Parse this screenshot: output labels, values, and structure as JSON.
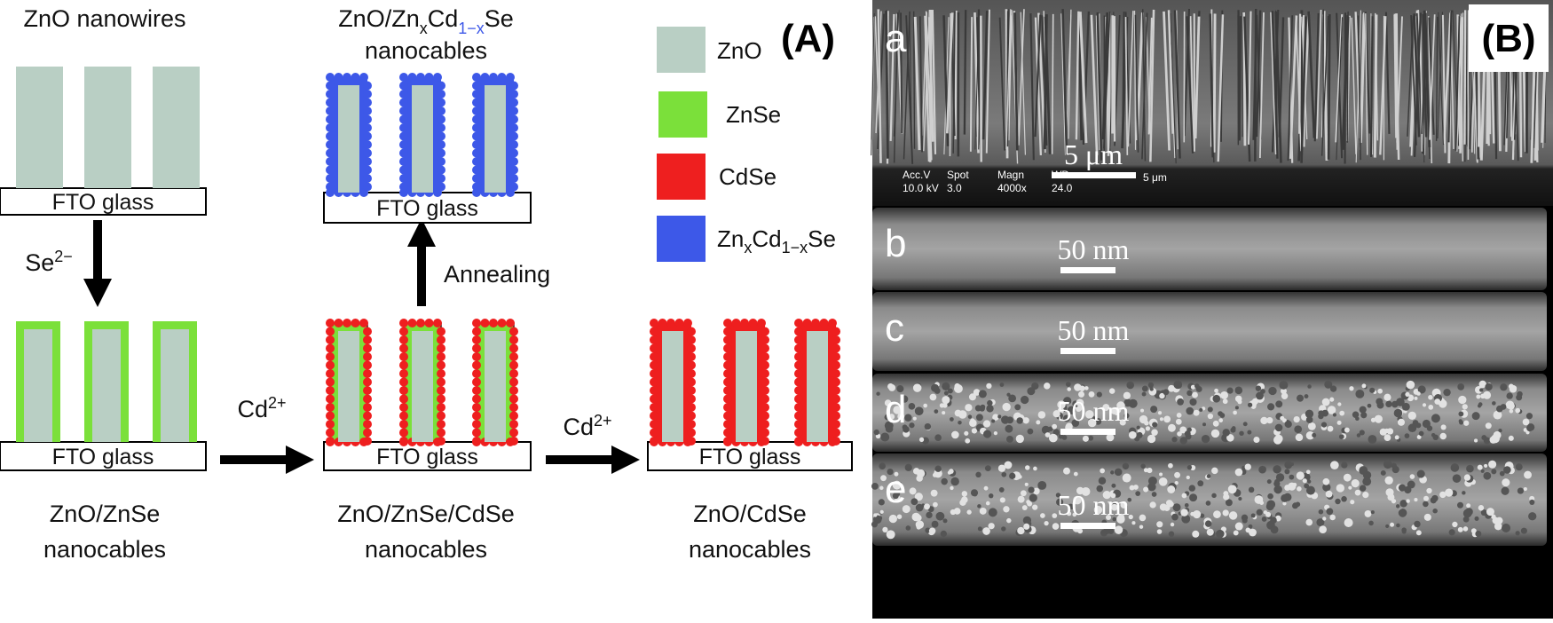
{
  "panel_a": {
    "label": "(A)",
    "substrate_labels": [
      "FTO glass",
      "FTO glass",
      "FTO glass",
      "FTO glass",
      "FTO glass"
    ],
    "captions": {
      "nanowires": "ZnO nanowires",
      "znse": [
        "ZnO/ZnSe",
        "nanocables"
      ],
      "znse_cdse": [
        "ZnO/ZnSe/CdSe",
        "nanocables"
      ],
      "alloy": {
        "prefix": "ZnO/Zn",
        "sub_x": "x",
        "cd": "Cd",
        "sub_1x": "1−x",
        "suffix": "Se",
        "line2": "nanocables"
      },
      "cdse": [
        "ZnO/CdSe",
        "nanocables"
      ]
    },
    "steps": [
      {
        "ion": "Se",
        "charge": "2−"
      },
      {
        "ion": "Cd",
        "charge": "2+"
      },
      {
        "label": "Annealing"
      },
      {
        "ion": "Cd",
        "charge": "2+"
      }
    ],
    "legend": [
      {
        "name": "ZnO",
        "color": "#b9cfc4"
      },
      {
        "name": "ZnSe",
        "color": "#7be03a"
      },
      {
        "name": "CdSe",
        "color": "#ee1f1f"
      },
      {
        "name_parts": [
          "Zn",
          "x",
          "Cd",
          "1−x",
          "Se"
        ],
        "color": "#3d58e8"
      }
    ]
  },
  "panel_b": {
    "label": "(B)",
    "images": [
      {
        "letter": "a",
        "scale": "5 μm"
      },
      {
        "letter": "b",
        "scale": "50 nm"
      },
      {
        "letter": "c",
        "scale": "50 nm"
      },
      {
        "letter": "d",
        "scale": "50 nm"
      },
      {
        "letter": "e",
        "scale": "50 nm"
      }
    ],
    "sem_info": {
      "header": [
        "Acc.V",
        "Spot",
        "Magn",
        "WD"
      ],
      "values": [
        "10.0 kV",
        "3.0",
        "4000x",
        "24.0"
      ],
      "scale": "5 μm"
    }
  }
}
